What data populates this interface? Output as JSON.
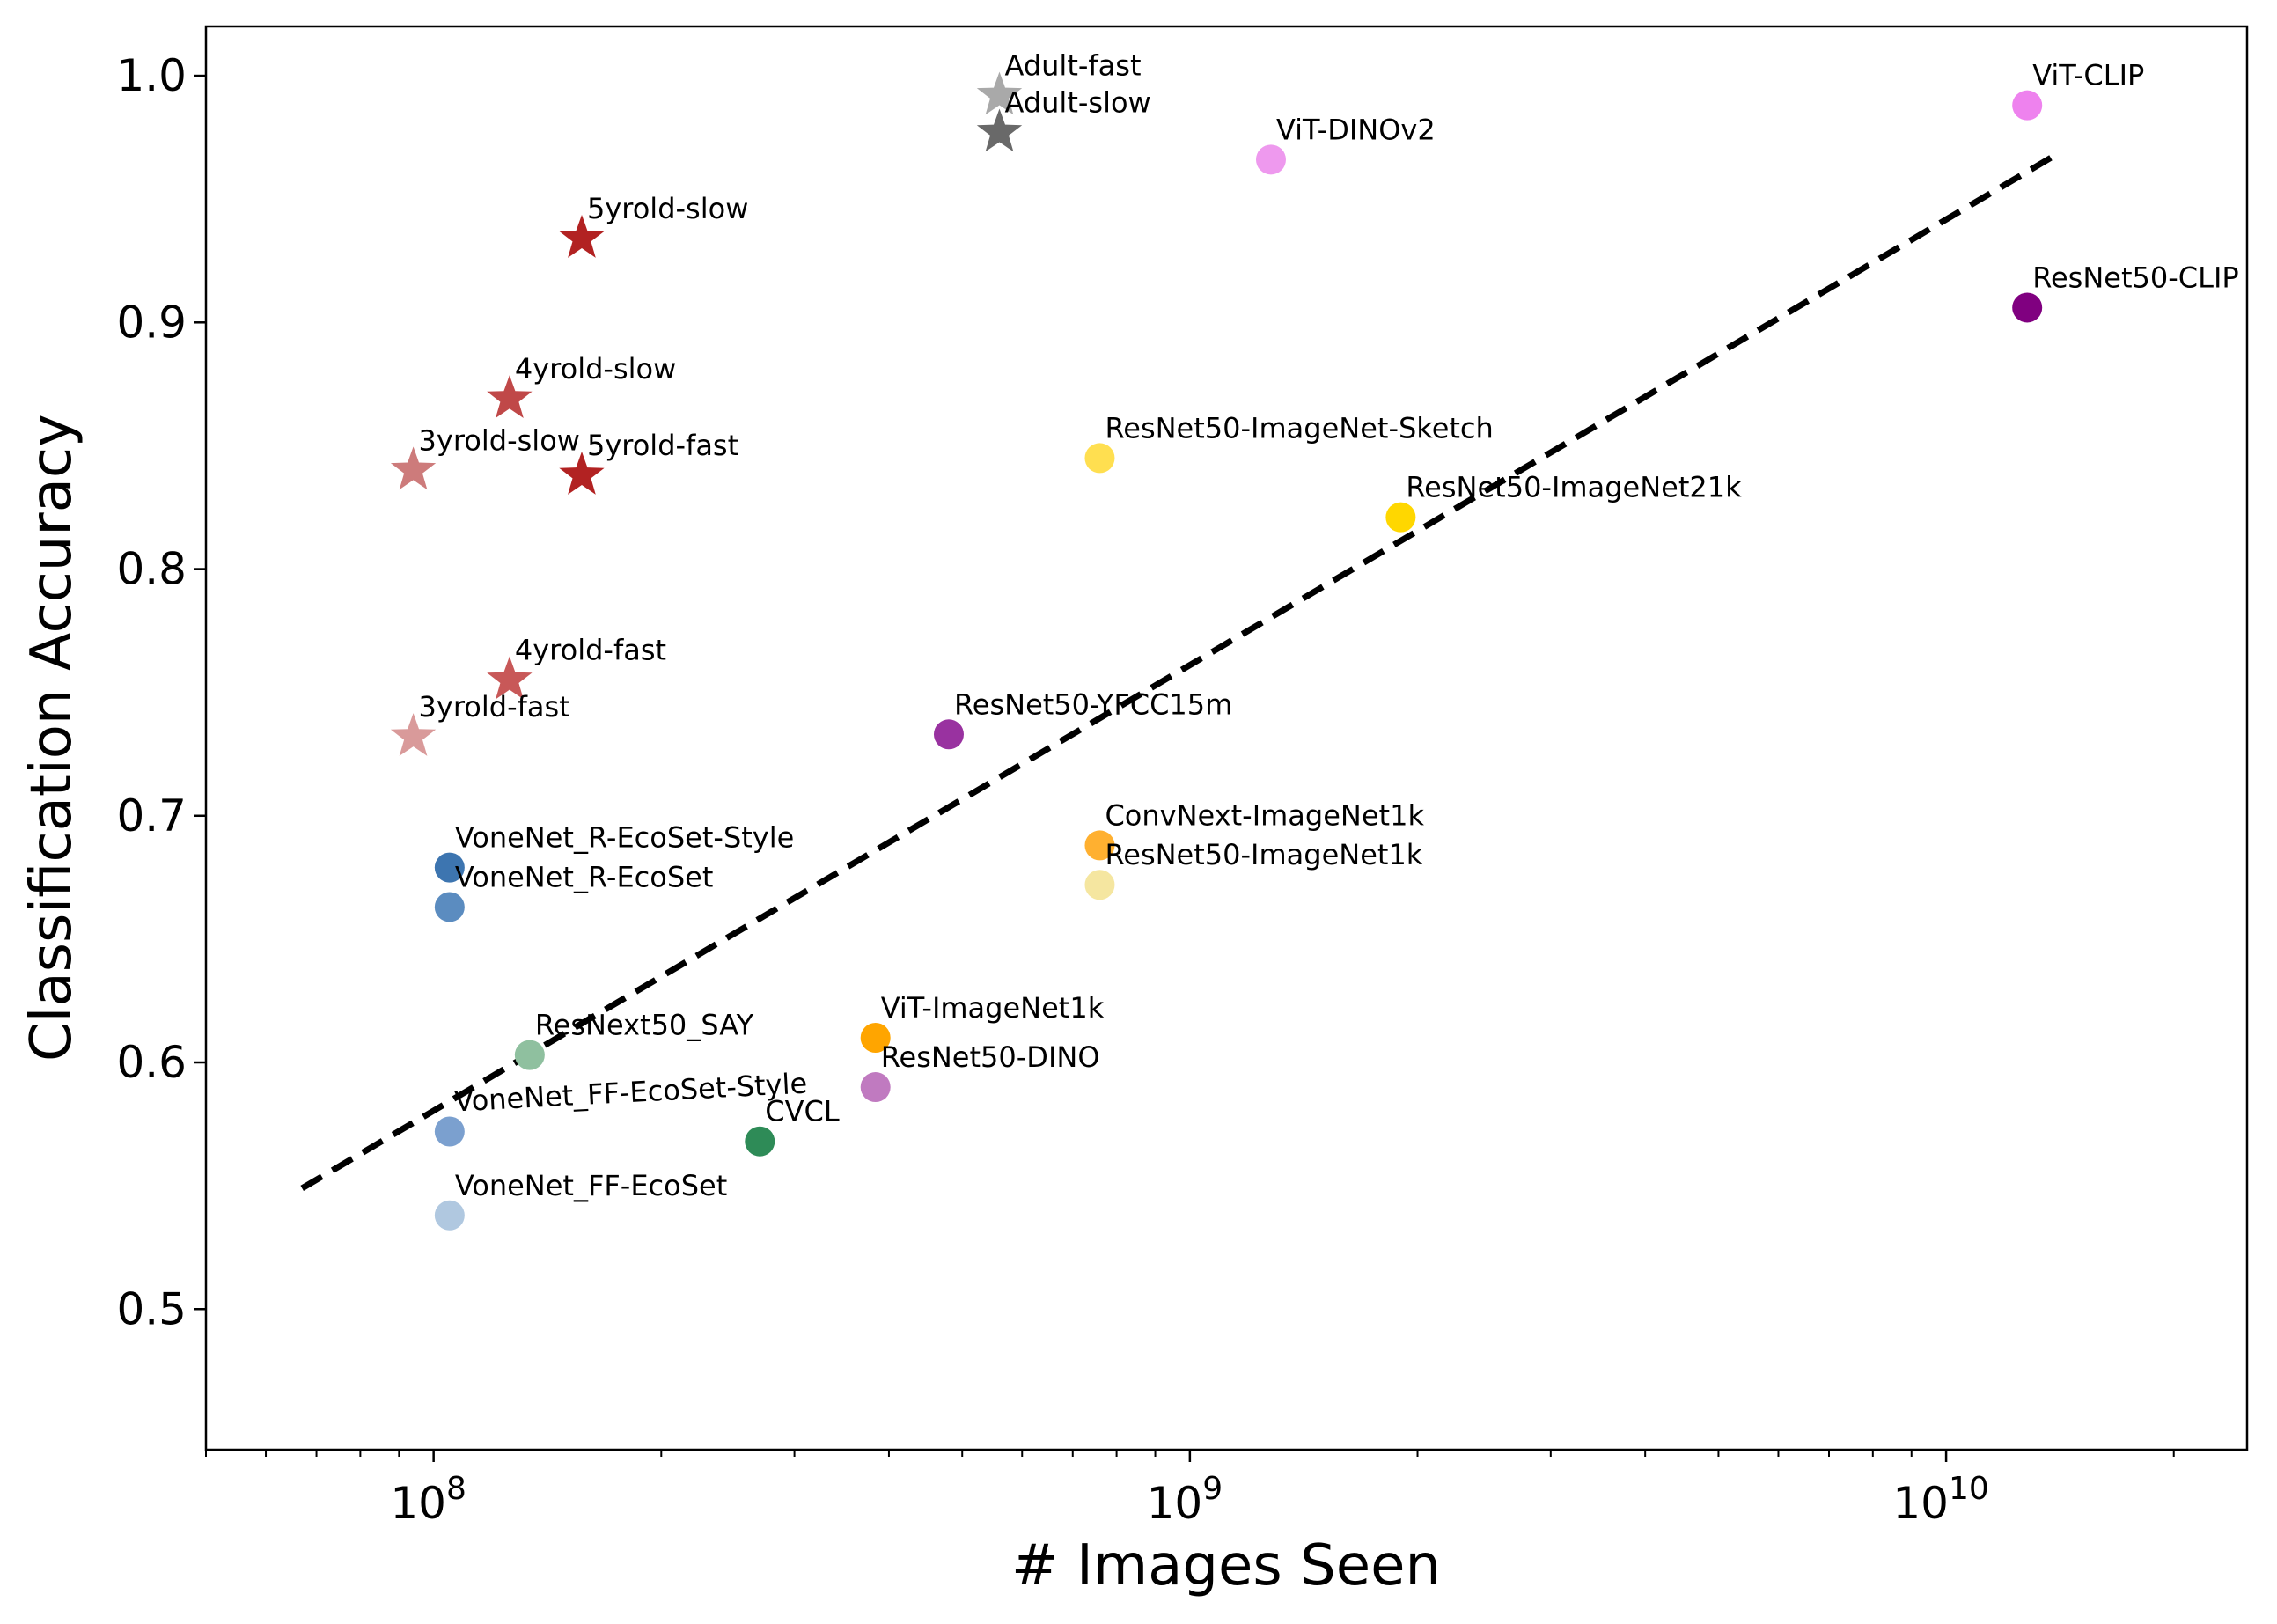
{
  "chart_data": {
    "type": "scatter",
    "xlabel": "# Images Seen",
    "ylabel": "Classification Accuracy",
    "xscale": "log",
    "xlim": [
      50000000,
      25000000000
    ],
    "ylim": [
      0.443,
      1.02
    ],
    "x_ticks": [
      {
        "value": 100000000,
        "base": "10",
        "exp": "8"
      },
      {
        "value": 1000000000,
        "base": "10",
        "exp": "9"
      },
      {
        "value": 10000000000,
        "base": "10",
        "exp": "10"
      }
    ],
    "y_ticks": [
      "0.5",
      "0.6",
      "0.7",
      "0.8",
      "0.9",
      "1.0"
    ],
    "grid": false,
    "legend": "none",
    "points": [
      {
        "label": "Adult-fast",
        "x": 560000000,
        "y": 0.992,
        "marker": "star",
        "color": "#a9a9a9"
      },
      {
        "label": "Adult-slow",
        "x": 560000000,
        "y": 0.977,
        "marker": "star",
        "color": "#696969"
      },
      {
        "label": "5yrold-slow",
        "x": 157000000,
        "y": 0.934,
        "marker": "star",
        "color": "#b22222"
      },
      {
        "label": "4yrold-slow",
        "x": 126000000,
        "y": 0.869,
        "marker": "star",
        "color": "#c04848"
      },
      {
        "label": "3yrold-slow",
        "x": 94000000,
        "y": 0.84,
        "marker": "star",
        "color": "#cd7b7b"
      },
      {
        "label": "5yrold-fast",
        "x": 157000000,
        "y": 0.838,
        "marker": "star",
        "color": "#b22222"
      },
      {
        "label": "4yrold-fast",
        "x": 126000000,
        "y": 0.755,
        "marker": "star",
        "color": "#c85858"
      },
      {
        "label": "3yrold-fast",
        "x": 94000000,
        "y": 0.732,
        "marker": "star",
        "color": "#d99a9a"
      },
      {
        "label": "ViT-CLIP",
        "x": 12800000000,
        "y": 0.988,
        "marker": "circle",
        "color": "#ee82ee"
      },
      {
        "label": "ViT-DINOv2",
        "x": 1280000000,
        "y": 0.966,
        "marker": "circle",
        "color": "#ee99ee"
      },
      {
        "label": "ResNet50-CLIP",
        "x": 12800000000,
        "y": 0.906,
        "marker": "circle",
        "color": "#800080"
      },
      {
        "label": "ResNet50-ImageNet-Sketch",
        "x": 760000000,
        "y": 0.845,
        "marker": "circle",
        "color": "#ffdf50"
      },
      {
        "label": "ResNet50-ImageNet21k",
        "x": 1900000000,
        "y": 0.821,
        "marker": "circle",
        "color": "#ffd700"
      },
      {
        "label": "ResNet50-YFCC15m",
        "x": 480000000,
        "y": 0.733,
        "marker": "circle",
        "color": "#9932a0"
      },
      {
        "label": "ConvNext-ImageNet1k",
        "x": 760000000,
        "y": 0.688,
        "marker": "circle",
        "color": "#ffb030"
      },
      {
        "label": "ResNet50-ImageNet1k",
        "x": 760000000,
        "y": 0.672,
        "marker": "circle",
        "color": "#f5e6a0"
      },
      {
        "label": "VoneNet_R-EcoSet-Style",
        "x": 105000000,
        "y": 0.679,
        "marker": "circle",
        "color": "#3d75b0"
      },
      {
        "label": "VoneNet_R-EcoSet",
        "x": 105000000,
        "y": 0.663,
        "marker": "circle",
        "color": "#5b8cc0"
      },
      {
        "label": "ViT-ImageNet1k",
        "x": 384000000,
        "y": 0.61,
        "marker": "circle",
        "color": "#ffa500"
      },
      {
        "label": "ResNet50-DINO",
        "x": 384000000,
        "y": 0.59,
        "marker": "circle",
        "color": "#c07ac0"
      },
      {
        "label": "ResNext50_SAY",
        "x": 134000000,
        "y": 0.603,
        "marker": "circle",
        "color": "#8fc09f"
      },
      {
        "label": "VoneNet_FF-EcoSet-Style",
        "x": 105000000,
        "y": 0.572,
        "marker": "circle",
        "color": "#7ba0cf"
      },
      {
        "label": "CVCL",
        "x": 270000000,
        "y": 0.568,
        "marker": "circle",
        "color": "#2e8b57"
      },
      {
        "label": "VoneNet_FF-EcoSet",
        "x": 105000000,
        "y": 0.538,
        "marker": "circle",
        "color": "#b0c8e0"
      }
    ],
    "fit_line": {
      "x": [
        67000000,
        13800000000
      ],
      "y": [
        0.549,
        0.967
      ],
      "style": "dashed",
      "color": "#000000"
    }
  }
}
